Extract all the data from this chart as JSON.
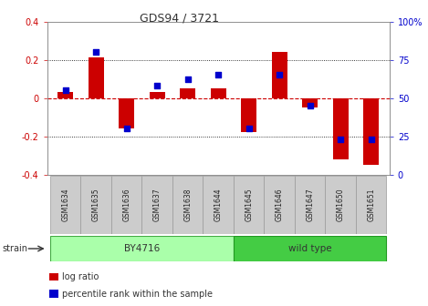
{
  "title": "GDS94 / 3721",
  "samples": [
    "GSM1634",
    "GSM1635",
    "GSM1636",
    "GSM1637",
    "GSM1638",
    "GSM1644",
    "GSM1645",
    "GSM1646",
    "GSM1647",
    "GSM1650",
    "GSM1651"
  ],
  "log_ratio": [
    0.03,
    0.21,
    -0.16,
    0.03,
    0.05,
    0.05,
    -0.18,
    0.24,
    -0.05,
    -0.32,
    -0.35
  ],
  "percentile_rank": [
    55,
    80,
    30,
    58,
    62,
    65,
    30,
    65,
    45,
    23,
    23
  ],
  "ylim_left": [
    -0.4,
    0.4
  ],
  "ylim_right": [
    0,
    100
  ],
  "yticks_left": [
    -0.4,
    -0.2,
    0.0,
    0.2,
    0.4
  ],
  "yticks_right": [
    0,
    25,
    50,
    75,
    100
  ],
  "ytick_labels_right": [
    "0",
    "25",
    "50",
    "75",
    "100%"
  ],
  "bar_color": "#cc0000",
  "dot_color": "#0000cc",
  "zero_line_color": "#cc0000",
  "grid_color": "#000000",
  "by4716_color": "#aaffaa",
  "wildtype_color": "#44cc44",
  "by4716_label": "BY4716",
  "wildtype_label": "wild type",
  "by4716_indices": [
    0,
    1,
    2,
    3,
    4,
    5
  ],
  "wildtype_indices": [
    6,
    7,
    8,
    9,
    10
  ],
  "strain_label": "strain",
  "legend_items": [
    {
      "label": "log ratio",
      "color": "#cc0000"
    },
    {
      "label": "percentile rank within the sample",
      "color": "#0000cc"
    }
  ],
  "bar_width": 0.5,
  "dot_size": 18,
  "tick_label_color_left": "#cc0000",
  "tick_label_color_right": "#0000cc",
  "title_color": "#333333",
  "label_box_color": "#cccccc",
  "label_box_edge": "#999999"
}
